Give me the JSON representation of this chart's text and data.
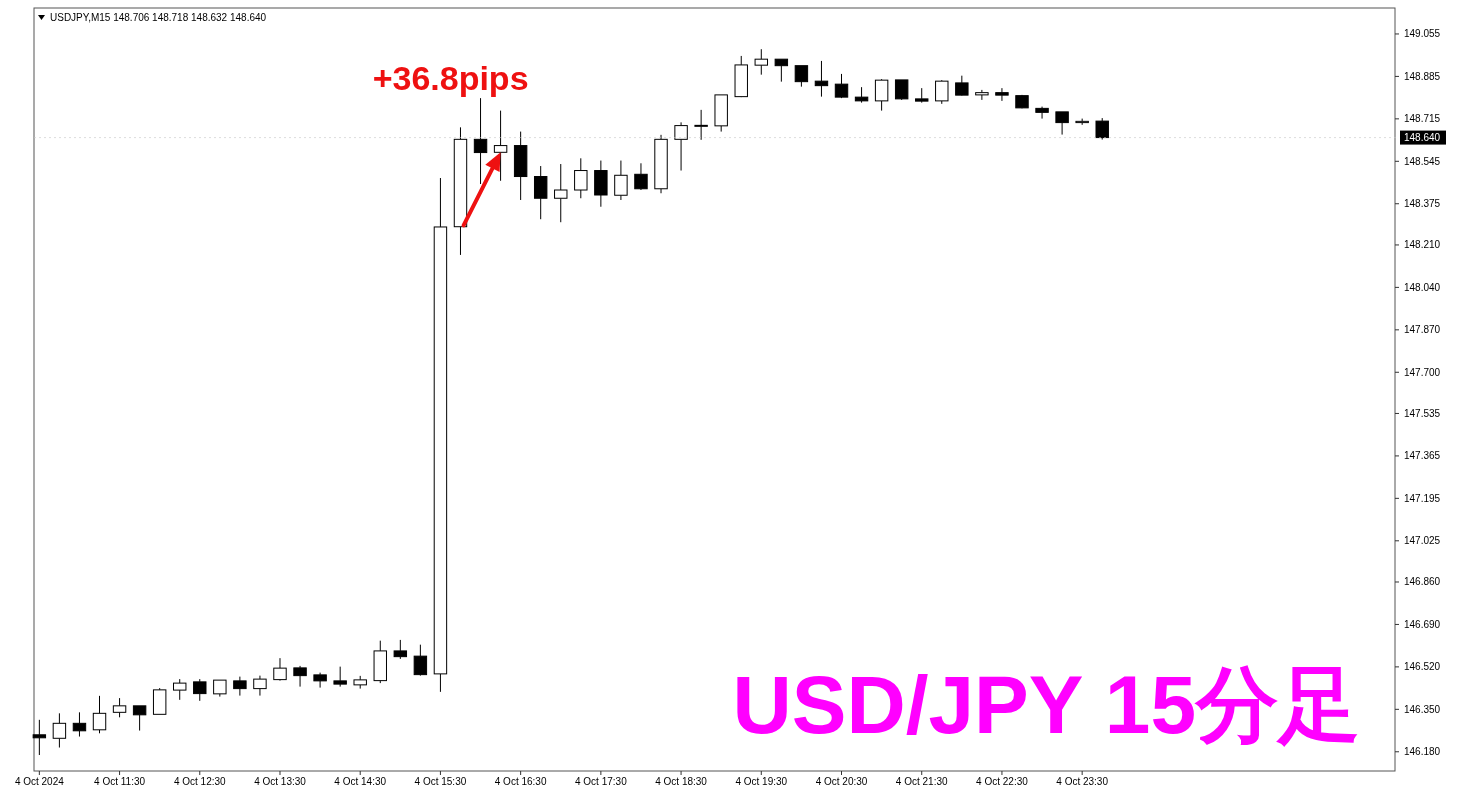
{
  "chart_data": {
    "type": "candlestick",
    "title": "USD/JPY 15分足",
    "subtitle": "USDJPY,M15  148.706 148.718 148.632 148.640",
    "annotations": [
      {
        "text": "+36.8pips",
        "x": "2024-10-04T16:15",
        "y": 148.581
      }
    ],
    "x": [
      "2024-10-04T10:30",
      "2024-10-04T10:45",
      "2024-10-04T11:00",
      "2024-10-04T11:15",
      "2024-10-04T11:30",
      "2024-10-04T11:45",
      "2024-10-04T12:00",
      "2024-10-04T12:15",
      "2024-10-04T12:30",
      "2024-10-04T12:45",
      "2024-10-04T13:00",
      "2024-10-04T13:15",
      "2024-10-04T13:30",
      "2024-10-04T13:45",
      "2024-10-04T14:00",
      "2024-10-04T14:15",
      "2024-10-04T14:30",
      "2024-10-04T14:45",
      "2024-10-04T15:00",
      "2024-10-04T15:15",
      "2024-10-04T15:30",
      "2024-10-04T15:45",
      "2024-10-04T16:00",
      "2024-10-04T16:15",
      "2024-10-04T16:30",
      "2024-10-04T16:45",
      "2024-10-04T17:00",
      "2024-10-04T17:15",
      "2024-10-04T17:30",
      "2024-10-04T17:45",
      "2024-10-04T18:00",
      "2024-10-04T18:15",
      "2024-10-04T18:30",
      "2024-10-04T18:45",
      "2024-10-04T19:00",
      "2024-10-04T19:15",
      "2024-10-04T19:30",
      "2024-10-04T19:45",
      "2024-10-04T20:00",
      "2024-10-04T20:15",
      "2024-10-04T20:30",
      "2024-10-04T20:45",
      "2024-10-04T21:00",
      "2024-10-04T21:15",
      "2024-10-04T21:30",
      "2024-10-04T21:45",
      "2024-10-04T22:00",
      "2024-10-04T22:15",
      "2024-10-04T22:30",
      "2024-10-04T22:45",
      "2024-10-04T23:00",
      "2024-10-04T23:15",
      "2024-10-04T23:30",
      "2024-10-04T23:45"
    ],
    "ohlc": [
      [
        146.248,
        146.308,
        146.167,
        146.236
      ],
      [
        146.234,
        146.334,
        146.197,
        146.294
      ],
      [
        146.294,
        146.338,
        146.241,
        146.264
      ],
      [
        146.268,
        146.404,
        146.254,
        146.334
      ],
      [
        146.338,
        146.395,
        146.318,
        146.364
      ],
      [
        146.364,
        146.364,
        146.265,
        146.328
      ],
      [
        146.33,
        146.435,
        146.33,
        146.428
      ],
      [
        146.427,
        146.471,
        146.388,
        146.455
      ],
      [
        146.46,
        146.471,
        146.384,
        146.413
      ],
      [
        146.412,
        146.467,
        146.401,
        146.467
      ],
      [
        146.464,
        146.481,
        146.405,
        146.433
      ],
      [
        146.433,
        146.485,
        146.405,
        146.471
      ],
      [
        146.469,
        146.555,
        146.465,
        146.515
      ],
      [
        146.516,
        146.524,
        146.441,
        146.485
      ],
      [
        146.488,
        146.497,
        146.437,
        146.464
      ],
      [
        146.464,
        146.521,
        146.441,
        146.451
      ],
      [
        146.448,
        146.484,
        146.433,
        146.468
      ],
      [
        146.465,
        146.625,
        146.455,
        146.584
      ],
      [
        146.584,
        146.628,
        146.552,
        146.561
      ],
      [
        146.563,
        146.609,
        146.485,
        146.489
      ],
      [
        146.492,
        148.478,
        146.42,
        148.282
      ],
      [
        148.283,
        148.681,
        148.17,
        148.633
      ],
      [
        148.633,
        148.798,
        148.454,
        148.58
      ],
      [
        148.581,
        148.748,
        148.467,
        148.608
      ],
      [
        148.608,
        148.664,
        148.39,
        148.484
      ],
      [
        148.484,
        148.526,
        148.313,
        148.397
      ],
      [
        148.397,
        148.534,
        148.301,
        148.43
      ],
      [
        148.43,
        148.557,
        148.397,
        148.508
      ],
      [
        148.508,
        148.548,
        148.363,
        148.41
      ],
      [
        148.409,
        148.548,
        148.39,
        148.489
      ],
      [
        148.493,
        148.537,
        148.43,
        148.435
      ],
      [
        148.435,
        148.651,
        148.417,
        148.633
      ],
      [
        148.633,
        148.701,
        148.508,
        148.688
      ],
      [
        148.689,
        148.751,
        148.631,
        148.689
      ],
      [
        148.687,
        148.811,
        148.664,
        148.811
      ],
      [
        148.804,
        148.967,
        148.802,
        148.931
      ],
      [
        148.93,
        148.994,
        148.892,
        148.954
      ],
      [
        148.954,
        148.954,
        148.864,
        148.928
      ],
      [
        148.928,
        148.928,
        148.844,
        148.864
      ],
      [
        148.866,
        148.947,
        148.804,
        148.848
      ],
      [
        148.854,
        148.895,
        148.798,
        148.802
      ],
      [
        148.802,
        148.842,
        148.78,
        148.787
      ],
      [
        148.787,
        148.874,
        148.748,
        148.87
      ],
      [
        148.871,
        148.871,
        148.791,
        148.795
      ],
      [
        148.795,
        148.838,
        148.78,
        148.786
      ],
      [
        148.787,
        148.87,
        148.775,
        148.866
      ],
      [
        148.859,
        148.888,
        148.808,
        148.81
      ],
      [
        148.811,
        148.831,
        148.791,
        148.82
      ],
      [
        148.82,
        148.838,
        148.787,
        148.81
      ],
      [
        148.808,
        148.811,
        148.757,
        148.759
      ],
      [
        148.757,
        148.764,
        148.716,
        148.741
      ],
      [
        148.743,
        148.743,
        148.652,
        148.7
      ],
      [
        148.7,
        148.716,
        148.691,
        148.705
      ],
      [
        148.706,
        148.718,
        148.632,
        148.64
      ]
    ],
    "xlim": [
      "2024-10-04T10:26",
      "2024-10-05T03:24"
    ],
    "xticks": [
      {
        "value": "2024-10-04T10:30",
        "label": "4 Oct 2024"
      },
      {
        "value": "2024-10-04T11:30",
        "label": "4 Oct 11:30"
      },
      {
        "value": "2024-10-04T12:30",
        "label": "4 Oct 12:30"
      },
      {
        "value": "2024-10-04T13:30",
        "label": "4 Oct 13:30"
      },
      {
        "value": "2024-10-04T14:30",
        "label": "4 Oct 14:30"
      },
      {
        "value": "2024-10-04T15:30",
        "label": "4 Oct 15:30"
      },
      {
        "value": "2024-10-04T16:30",
        "label": "4 Oct 16:30"
      },
      {
        "value": "2024-10-04T17:30",
        "label": "4 Oct 17:30"
      },
      {
        "value": "2024-10-04T18:30",
        "label": "4 Oct 18:30"
      },
      {
        "value": "2024-10-04T19:30",
        "label": "4 Oct 19:30"
      },
      {
        "value": "2024-10-04T20:30",
        "label": "4 Oct 20:30"
      },
      {
        "value": "2024-10-04T21:30",
        "label": "4 Oct 21:30"
      },
      {
        "value": "2024-10-04T22:30",
        "label": "4 Oct 22:30"
      },
      {
        "value": "2024-10-04T23:30",
        "label": "4 Oct 23:30"
      }
    ],
    "ylim": [
      146.103,
      149.159
    ],
    "yticks": [
      {
        "value": 149.055,
        "label": "149.055"
      },
      {
        "value": 148.885,
        "label": "148.885"
      },
      {
        "value": 148.715,
        "label": "148.715"
      },
      {
        "value": 148.545,
        "label": "148.545"
      },
      {
        "value": 148.375,
        "label": "148.375"
      },
      {
        "value": 148.21,
        "label": "148.210"
      },
      {
        "value": 148.04,
        "label": "148.040"
      },
      {
        "value": 147.87,
        "label": "147.870"
      },
      {
        "value": 147.7,
        "label": "147.700"
      },
      {
        "value": 147.535,
        "label": "147.535"
      },
      {
        "value": 147.365,
        "label": "147.365"
      },
      {
        "value": 147.195,
        "label": "147.195"
      },
      {
        "value": 147.025,
        "label": "147.025"
      },
      {
        "value": 146.86,
        "label": "146.860"
      },
      {
        "value": 146.69,
        "label": "146.690"
      },
      {
        "value": 146.52,
        "label": "146.520"
      },
      {
        "value": 146.35,
        "label": "146.350"
      },
      {
        "value": 146.18,
        "label": "146.180"
      }
    ],
    "ref_lines": [
      {
        "axis": "y",
        "value": 148.64,
        "label": "148.640"
      }
    ]
  }
}
